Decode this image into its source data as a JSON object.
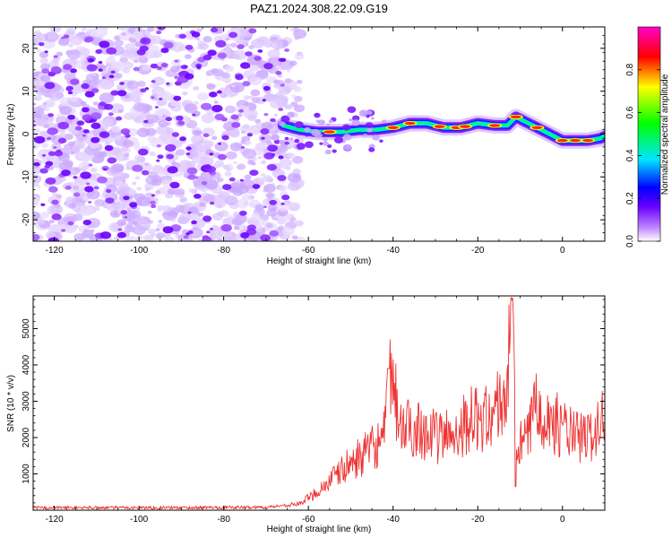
{
  "title": "PAZ1.2024.308.22.09.G19",
  "chart_data": [
    {
      "type": "heatmap",
      "xlabel": "Height of straight line (km)",
      "ylabel": "Frequency (Hz)",
      "xlim": [
        -125,
        10
      ],
      "ylim": [
        -25,
        25
      ],
      "xticks": [
        -120,
        -100,
        -80,
        -60,
        -40,
        -20,
        0
      ],
      "yticks": [
        -20,
        -10,
        0,
        10,
        20
      ],
      "colorbar": {
        "label": "Normalized spectral amplitude",
        "range": [
          0,
          1
        ],
        "ticks": [
          0.0,
          0.2,
          0.4,
          0.6,
          0.8
        ],
        "colormap": [
          "#ffffff",
          "#a020f0",
          "#0000ff",
          "#00ffff",
          "#00ff00",
          "#ffff00",
          "#ff0000",
          "#ff00ff"
        ]
      },
      "ridge": {
        "description": "main signal track frequency vs height",
        "x": [
          -66,
          -62,
          -58,
          -55,
          -52,
          -48,
          -44,
          -40,
          -36,
          -32,
          -28,
          -24,
          -20,
          -16,
          -13,
          -11,
          -8,
          -5,
          -2,
          0,
          3,
          6,
          9,
          10
        ],
        "y": [
          2.0,
          1.0,
          0.5,
          0.5,
          0.5,
          1.0,
          1.0,
          1.5,
          2.5,
          2.5,
          1.5,
          1.5,
          2.5,
          2.0,
          2.0,
          4.0,
          2.5,
          1.0,
          -0.5,
          -1.5,
          -1.5,
          -1.5,
          -1.0,
          -0.5
        ]
      },
      "noise_region_x": [
        -125,
        -65
      ]
    },
    {
      "type": "line",
      "xlabel": "Height of straight line (km)",
      "ylabel": "SNR (10 * v/v)",
      "xlim": [
        -125,
        10
      ],
      "ylim": [
        0,
        5900
      ],
      "xticks": [
        -120,
        -100,
        -80,
        -60,
        -40,
        -20,
        0
      ],
      "yticks": [
        1000,
        2000,
        3000,
        4000,
        5000
      ],
      "color": "#ee3333",
      "envelope": {
        "x": [
          -125,
          -90,
          -70,
          -62,
          -58,
          -54,
          -50,
          -46,
          -42,
          -41,
          -38,
          -34,
          -30,
          -26,
          -22,
          -18,
          -15,
          -13,
          -12,
          -11,
          -10,
          -8,
          -6,
          -4,
          -2,
          0,
          3,
          6,
          9,
          10
        ],
        "y": [
          70,
          70,
          80,
          180,
          500,
          900,
          1300,
          1600,
          2000,
          3900,
          2200,
          2300,
          2000,
          2100,
          2500,
          2500,
          2900,
          3200,
          5900,
          1400,
          1800,
          2000,
          3300,
          2500,
          2400,
          2300,
          2000,
          2000,
          2300,
          2800
        ]
      }
    }
  ]
}
